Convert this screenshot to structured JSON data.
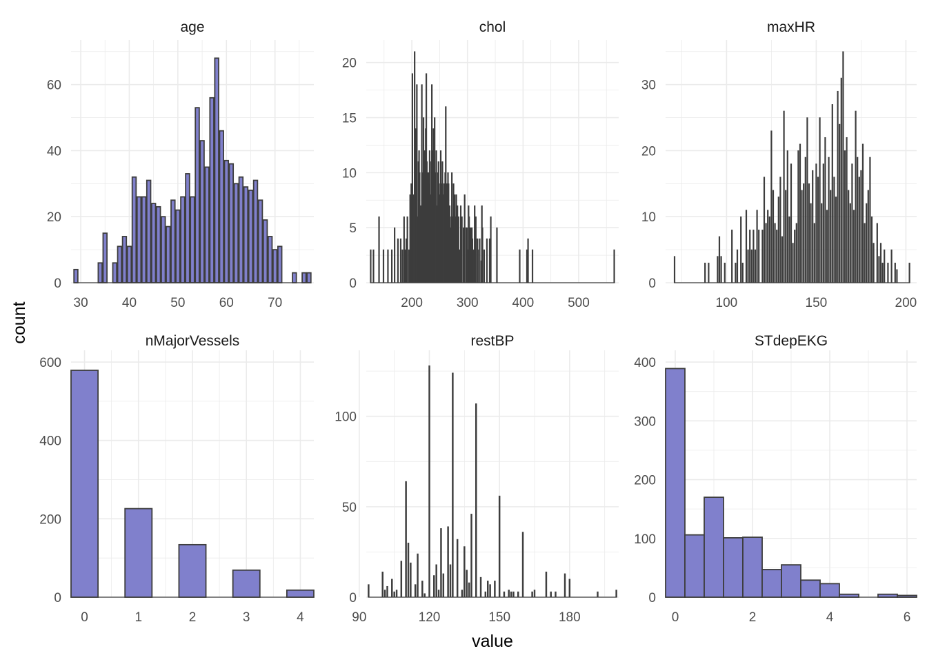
{
  "figure": {
    "xlabel": "value",
    "ylabel": "count",
    "bar_fill": "#8080cc",
    "bar_outline": "#3d3d3d",
    "grid_color": "#ebebeb",
    "background": "#ffffff"
  },
  "chart_data": [
    {
      "type": "bar",
      "title": "age",
      "ylim": [
        0,
        70
      ],
      "xlim": [
        28,
        78
      ],
      "xticks": [
        30,
        40,
        50,
        60,
        70
      ],
      "yticks": [
        0,
        20,
        40,
        60
      ],
      "x": [
        29,
        30,
        31,
        32,
        33,
        34,
        35,
        36,
        37,
        38,
        39,
        40,
        41,
        42,
        43,
        44,
        45,
        46,
        47,
        48,
        49,
        50,
        51,
        52,
        53,
        54,
        55,
        56,
        57,
        58,
        59,
        60,
        61,
        62,
        63,
        64,
        65,
        66,
        67,
        68,
        69,
        70,
        71,
        72,
        73,
        74,
        75,
        76,
        77
      ],
      "values": [
        4,
        0,
        0,
        0,
        0,
        6,
        15,
        0,
        6,
        11,
        14,
        11,
        32,
        26,
        26,
        31,
        24,
        23,
        20,
        17,
        25,
        22,
        26,
        33,
        26,
        53,
        43,
        35,
        56,
        68,
        46,
        37,
        36,
        30,
        32,
        29,
        28,
        31,
        25,
        19,
        14,
        10,
        11,
        0,
        0,
        3,
        0,
        3,
        3
      ]
    },
    {
      "type": "bar",
      "title": "chol",
      "ylim": [
        0,
        21
      ],
      "xlim": [
        118,
        572
      ],
      "xticks": [
        200,
        300,
        400,
        500
      ],
      "yticks": [
        0,
        5,
        10,
        15,
        20
      ],
      "x": [
        126,
        131,
        141,
        149,
        157,
        164,
        169,
        175,
        180,
        183,
        186,
        188,
        190,
        192,
        195,
        197,
        198,
        199,
        201,
        203,
        205,
        207,
        209,
        211,
        212,
        213,
        214,
        216,
        218,
        219,
        220,
        221,
        222,
        223,
        224,
        225,
        226,
        227,
        228,
        229,
        230,
        231,
        232,
        233,
        234,
        235,
        236,
        237,
        239,
        240,
        241,
        242,
        243,
        244,
        245,
        246,
        247,
        248,
        249,
        250,
        252,
        253,
        254,
        255,
        256,
        258,
        259,
        260,
        261,
        262,
        263,
        264,
        265,
        266,
        267,
        268,
        269,
        270,
        271,
        272,
        273,
        274,
        275,
        276,
        277,
        278,
        279,
        280,
        281,
        282,
        283,
        284,
        286,
        288,
        289,
        290,
        293,
        294,
        295,
        298,
        299,
        300,
        302,
        303,
        304,
        305,
        306,
        307,
        308,
        309,
        311,
        313,
        315,
        318,
        319,
        322,
        325,
        326,
        327,
        330,
        335,
        340,
        342,
        353,
        394,
        407,
        409,
        417,
        564
      ],
      "values": [
        3,
        3,
        6,
        3,
        3,
        3,
        5,
        4,
        4,
        3,
        6,
        3,
        4,
        6,
        3,
        8,
        5,
        9,
        19,
        8,
        21,
        14,
        18,
        6,
        11,
        12,
        10,
        7,
        18,
        9,
        10,
        15,
        8,
        12,
        11,
        14,
        19,
        11,
        10,
        8,
        10,
        9,
        12,
        7,
        8,
        11,
        18,
        12,
        14,
        8,
        15,
        10,
        9,
        12,
        6,
        7,
        10,
        11,
        9,
        8,
        12,
        8,
        9,
        11,
        8,
        9,
        6,
        10,
        16,
        8,
        9,
        9,
        10,
        9,
        6,
        7,
        4,
        5,
        6,
        10,
        6,
        6,
        9,
        5,
        8,
        6,
        5,
        8,
        6,
        7,
        5,
        6,
        3,
        7,
        4,
        6,
        5,
        4,
        8,
        5,
        5,
        3,
        7,
        6,
        5,
        4,
        5,
        4,
        5,
        4,
        3,
        7,
        6,
        4,
        3,
        4,
        2,
        7,
        5,
        3,
        4,
        4,
        6,
        5,
        3,
        3,
        4,
        3,
        3
      ]
    },
    {
      "type": "bar",
      "title": "maxHR",
      "ylim": [
        0,
        35
      ],
      "xlim": [
        66,
        206
      ],
      "xticks": [
        100,
        150,
        200
      ],
      "yticks": [
        0,
        10,
        20,
        30
      ],
      "x": [
        71,
        88,
        90,
        95,
        96,
        97,
        99,
        103,
        105,
        106,
        108,
        109,
        111,
        112,
        113,
        114,
        115,
        116,
        117,
        118,
        120,
        121,
        122,
        123,
        124,
        125,
        126,
        127,
        128,
        129,
        130,
        131,
        132,
        133,
        134,
        135,
        136,
        137,
        138,
        139,
        140,
        141,
        142,
        143,
        144,
        145,
        146,
        147,
        148,
        149,
        150,
        151,
        152,
        153,
        154,
        155,
        156,
        157,
        158,
        159,
        160,
        161,
        162,
        163,
        164,
        165,
        166,
        167,
        168,
        169,
        170,
        171,
        172,
        173,
        174,
        175,
        176,
        177,
        178,
        179,
        180,
        181,
        182,
        184,
        185,
        186,
        187,
        188,
        190,
        192,
        194,
        195,
        202
      ],
      "values": [
        4,
        3,
        3,
        4,
        7,
        4,
        3,
        8,
        3,
        5,
        10,
        3,
        11,
        5,
        8,
        5,
        8,
        5,
        11,
        8,
        8,
        16,
        9,
        11,
        10,
        23,
        14,
        9,
        8,
        13,
        16,
        7,
        26,
        14,
        20,
        10,
        18,
        6,
        8,
        9,
        20,
        21,
        14,
        15,
        19,
        25,
        15,
        12,
        17,
        9,
        18,
        16,
        25,
        12,
        18,
        22,
        11,
        19,
        14,
        27,
        16,
        13,
        29,
        24,
        31,
        35,
        20,
        22,
        14,
        12,
        18,
        11,
        26,
        19,
        16,
        17,
        21,
        9,
        12,
        14,
        19,
        10,
        6,
        9,
        4,
        6,
        3,
        5,
        3,
        5,
        3,
        2,
        3
      ]
    },
    {
      "type": "bar",
      "title": "nMajorVessels",
      "ylim": [
        0,
        600
      ],
      "xlim": [
        -0.25,
        4.25
      ],
      "xticks": [
        0,
        1,
        2,
        3,
        4
      ],
      "yticks": [
        0,
        200,
        400,
        600
      ],
      "x": [
        0,
        1,
        2,
        3,
        4
      ],
      "values": [
        579,
        226,
        134,
        69,
        18
      ]
    },
    {
      "type": "bar",
      "title": "restBP",
      "ylim": [
        0,
        130
      ],
      "xlim": [
        93,
        201
      ],
      "xticks": [
        90,
        120,
        150,
        180
      ],
      "yticks": [
        0,
        50,
        100
      ],
      "x": [
        94,
        100,
        101,
        102,
        104,
        105,
        106,
        108,
        110,
        111,
        112,
        114,
        115,
        117,
        118,
        120,
        122,
        123,
        124,
        125,
        126,
        128,
        129,
        130,
        132,
        134,
        135,
        136,
        137,
        138,
        140,
        142,
        144,
        145,
        146,
        148,
        150,
        152,
        154,
        155,
        156,
        158,
        160,
        164,
        165,
        170,
        172,
        174,
        178,
        180,
        192,
        200
      ],
      "values": [
        7,
        14,
        4,
        6,
        10,
        3,
        4,
        20,
        64,
        30,
        19,
        7,
        24,
        9,
        2,
        128,
        12,
        18,
        4,
        38,
        13,
        39,
        18,
        124,
        32,
        4,
        28,
        15,
        8,
        46,
        107,
        11,
        3,
        9,
        7,
        9,
        56,
        3,
        4,
        3,
        3,
        3,
        36,
        3,
        4,
        14,
        3,
        3,
        13,
        10,
        3,
        4
      ]
    },
    {
      "type": "bar",
      "title": "STdepEKG",
      "ylim": [
        0,
        400
      ],
      "xlim": [
        -0.25,
        6.25
      ],
      "xticks": [
        0,
        2,
        4,
        6
      ],
      "yticks": [
        0,
        100,
        200,
        300,
        400
      ],
      "x": [
        0,
        0.5,
        1,
        1.5,
        2,
        2.5,
        3,
        3.5,
        4,
        4.5,
        5,
        5.5,
        6
      ],
      "values": [
        389,
        106,
        170,
        101,
        102,
        47,
        55,
        29,
        23,
        5,
        0,
        5,
        3
      ]
    }
  ]
}
